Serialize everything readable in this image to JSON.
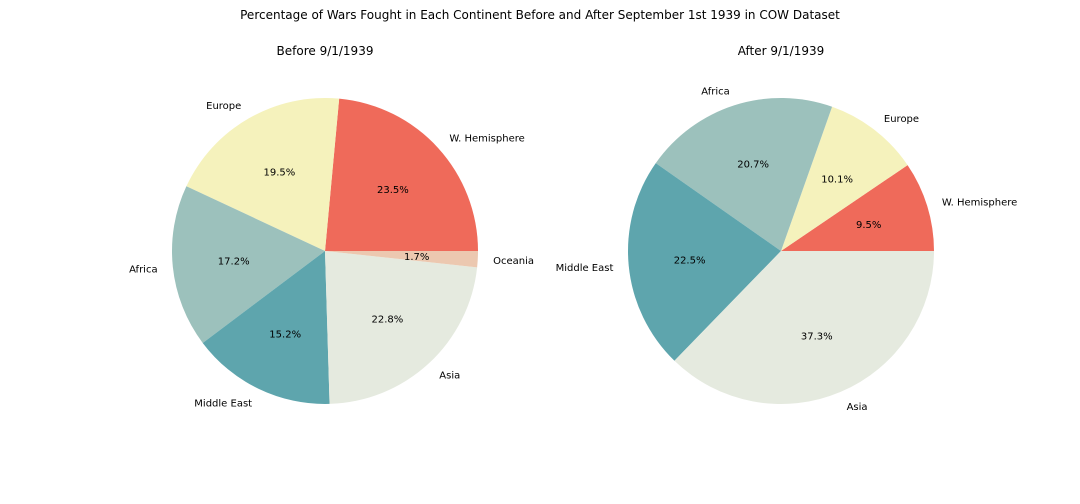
{
  "title": "Percentage of Wars Fought in Each Continent Before and After September 1st 1939 in COW Dataset",
  "chart_data": [
    {
      "type": "pie",
      "title": "Before 9/1/1939",
      "slices": [
        {
          "label": "W. Hemisphere",
          "value": 23.5,
          "pct_label": "23.5%",
          "color": "#ef6a5a"
        },
        {
          "label": "Europe",
          "value": 19.5,
          "pct_label": "19.5%",
          "color": "#f5f2bc"
        },
        {
          "label": "Africa",
          "value": 17.2,
          "pct_label": "17.2%",
          "color": "#9cc1bc"
        },
        {
          "label": "Middle East",
          "value": 15.2,
          "pct_label": "15.2%",
          "color": "#5ea5ad"
        },
        {
          "label": "Asia",
          "value": 22.8,
          "pct_label": "22.8%",
          "color": "#e5eadf"
        },
        {
          "label": "Oceania",
          "value": 1.7,
          "pct_label": "1.7%",
          "color": "#ecc8b0"
        }
      ]
    },
    {
      "type": "pie",
      "title": "After 9/1/1939",
      "slices": [
        {
          "label": "W. Hemisphere",
          "value": 9.5,
          "pct_label": "9.5%",
          "color": "#ef6a5a"
        },
        {
          "label": "Europe",
          "value": 10.1,
          "pct_label": "10.1%",
          "color": "#f5f2bc"
        },
        {
          "label": "Africa",
          "value": 20.7,
          "pct_label": "20.7%",
          "color": "#9cc1bc"
        },
        {
          "label": "Middle East",
          "value": 22.5,
          "pct_label": "22.5%",
          "color": "#5ea5ad"
        },
        {
          "label": "Asia",
          "value": 37.3,
          "pct_label": "37.3%",
          "color": "#e5eadf"
        }
      ]
    }
  ]
}
